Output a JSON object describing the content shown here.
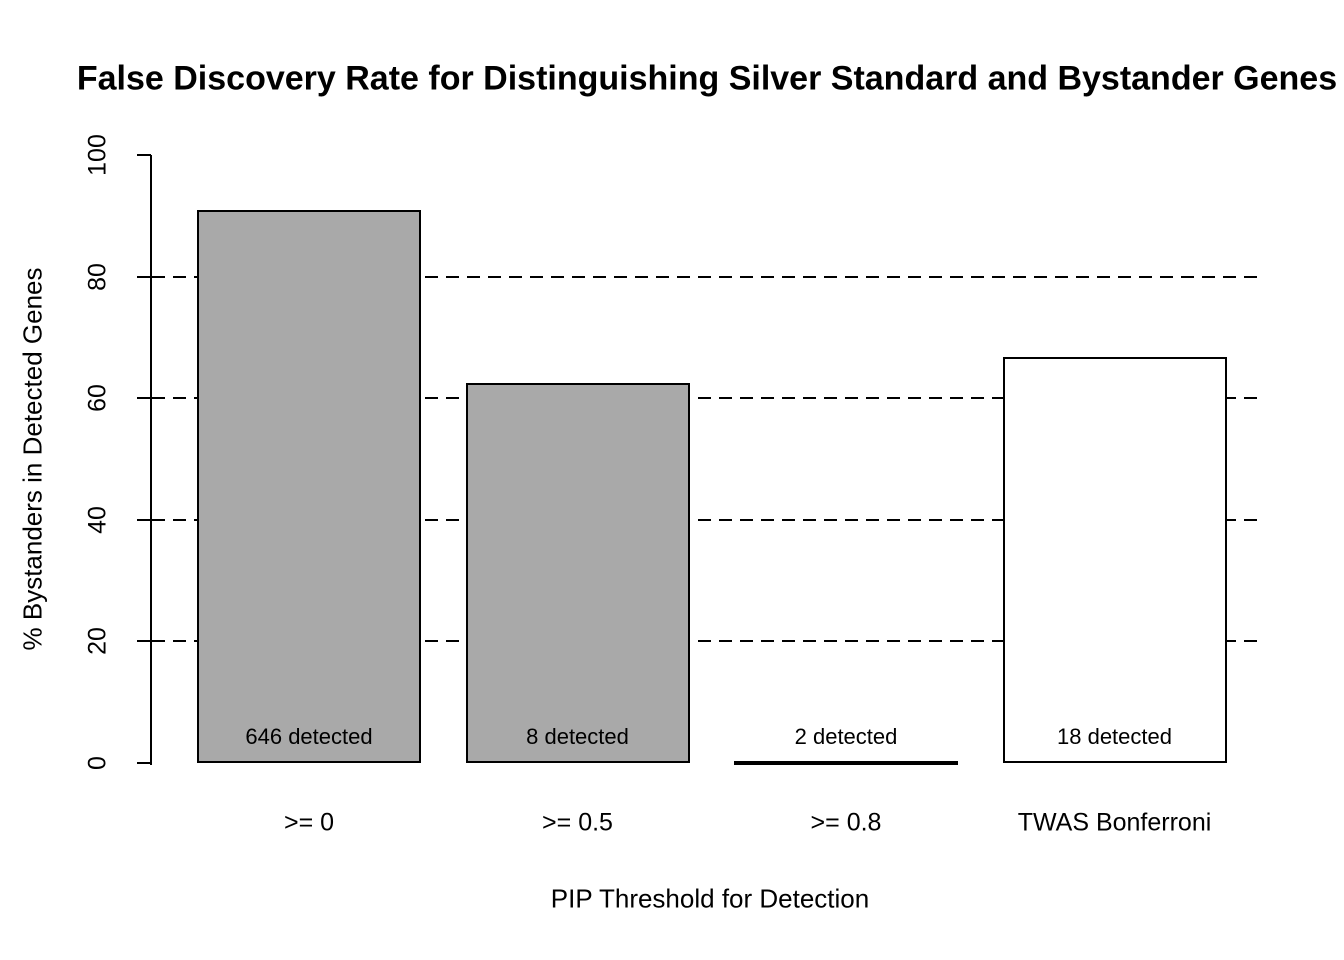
{
  "chart_data": {
    "type": "bar",
    "title": "False Discovery Rate for Distinguishing Silver Standard and Bystander Genes",
    "xlabel": "PIP Threshold for Detection",
    "ylabel": "% Bystanders in Detected Genes",
    "categories": [
      ">= 0",
      ">= 0.5",
      ">= 0.8",
      "TWAS Bonferroni"
    ],
    "values": [
      91,
      62.5,
      0,
      66.7
    ],
    "bar_labels": [
      "646 detected",
      "8 detected",
      "2 detected",
      "18 detected"
    ],
    "bar_colors": [
      "#A9A9A9",
      "#A9A9A9",
      "#A9A9A9",
      "#FFFFFF"
    ],
    "bar_border_color": "#000000",
    "ylim": [
      0,
      100
    ],
    "yticks": [
      0,
      20,
      40,
      60,
      80,
      100
    ],
    "gridlines": [
      20,
      40,
      60,
      80
    ],
    "grid_style": "dashed",
    "grid_color": "#000000",
    "axis_color": "#000000",
    "legend_position": "none",
    "background_color": "#FFFFFF"
  }
}
